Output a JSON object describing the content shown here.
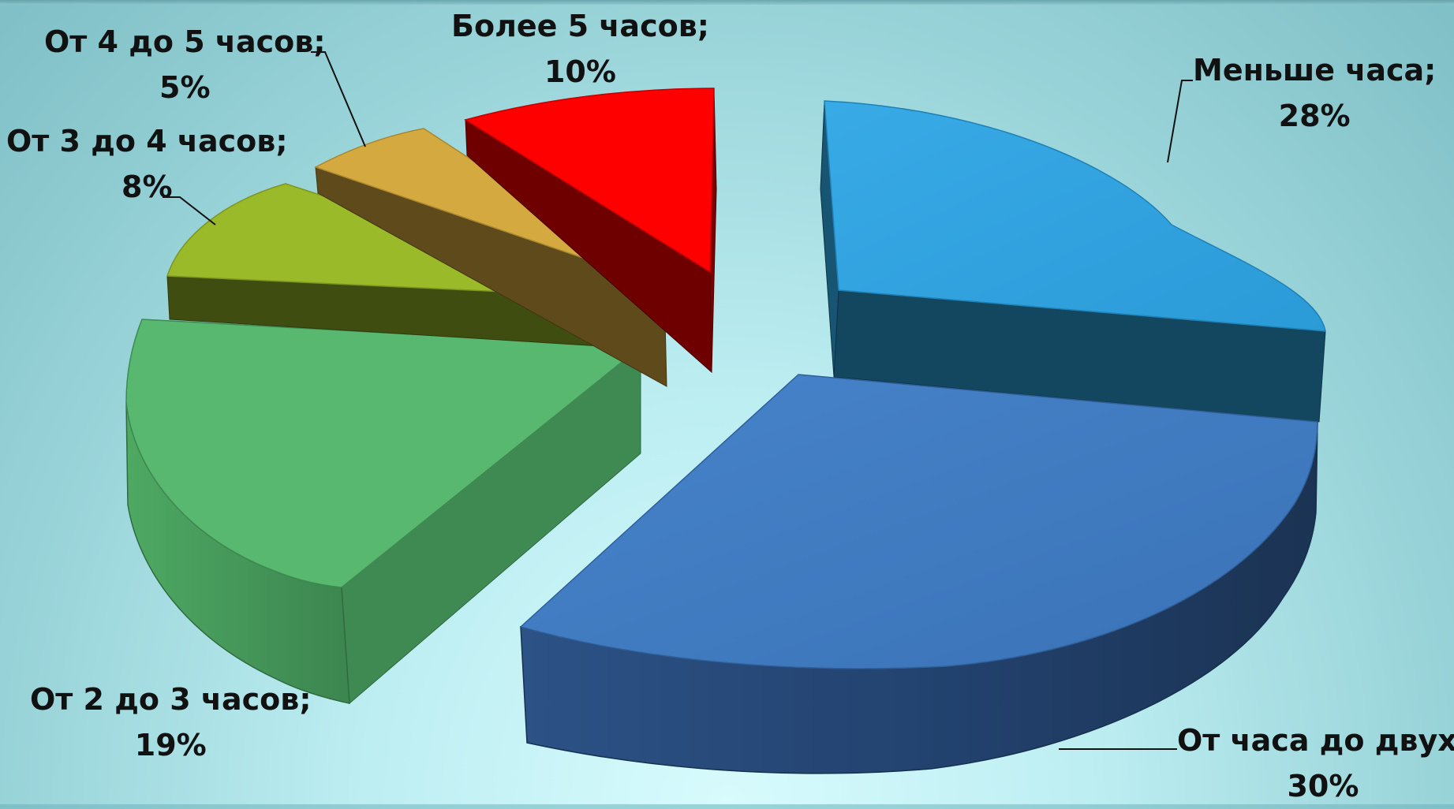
{
  "chart_data": {
    "type": "pie",
    "style": "3d-exploded",
    "slices": [
      {
        "label": "Меньше часа;",
        "value_label": "28%",
        "value": 28,
        "color": "#30a3e1",
        "side_color": "#13465f"
      },
      {
        "label": "От часа до двух;",
        "value_label": "30%",
        "value": 30,
        "color": "#3f7bc1",
        "side_color": "#1f3c64"
      },
      {
        "label": "От 2 до 3 часов;",
        "value_label": "19%",
        "value": 19,
        "color": "#58b86f",
        "side_color": "#3f8a52"
      },
      {
        "label": "От 3 до 4 часов;",
        "value_label": "8%",
        "value": 8,
        "color": "#9aba2a",
        "side_color": "#3f4e10"
      },
      {
        "label": "От 4 до 5 часов;",
        "value_label": "5%",
        "value": 5,
        "color": "#d4aa40",
        "side_color": "#5e4a1a"
      },
      {
        "label": "Более 5 часов;",
        "value_label": "10%",
        "value": 10,
        "color": "#fe0000",
        "side_color": "#6e0000"
      }
    ]
  }
}
